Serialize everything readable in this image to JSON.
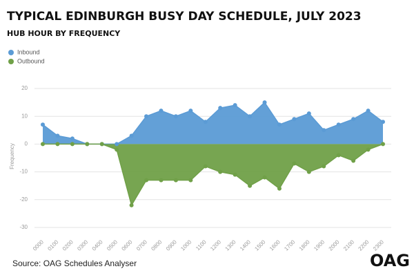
{
  "chart_data": {
    "type": "area",
    "title": "TYPICAL EDINBURGH BUSY DAY SCHEDULE, JULY 2023",
    "subtitle": "HUB HOUR BY FREQUENCY",
    "y_label": "Frequency",
    "source": "Source: OAG Schedules Analyser",
    "logo": "OAG",
    "categories": [
      "0000",
      "0100",
      "0200",
      "0300",
      "0400",
      "0500",
      "0600",
      "0700",
      "0800",
      "0900",
      "1000",
      "1100",
      "1200",
      "1300",
      "1400",
      "1500",
      "1600",
      "1700",
      "1800",
      "1900",
      "2000",
      "2100",
      "2200",
      "2300"
    ],
    "series": [
      {
        "name": "Inbound",
        "color": "#5b9bd5",
        "values": [
          7,
          3,
          2,
          0,
          0,
          0,
          3,
          10,
          12,
          10,
          12,
          8,
          13,
          14,
          10,
          15,
          7,
          9,
          11,
          5,
          7,
          9,
          12,
          8
        ]
      },
      {
        "name": "Outbound",
        "color": "#70a048",
        "values": [
          0,
          0,
          0,
          0,
          0,
          -2,
          -22,
          -13,
          -13,
          -13,
          -13,
          -8,
          -10,
          -11,
          -15,
          -12,
          -16,
          -7,
          -10,
          -8,
          -4,
          -6,
          -2,
          0
        ]
      }
    ],
    "ylim": [
      -30,
      20
    ],
    "yticks": [
      -30,
      -20,
      -10,
      0,
      10,
      20
    ],
    "grid": true
  }
}
